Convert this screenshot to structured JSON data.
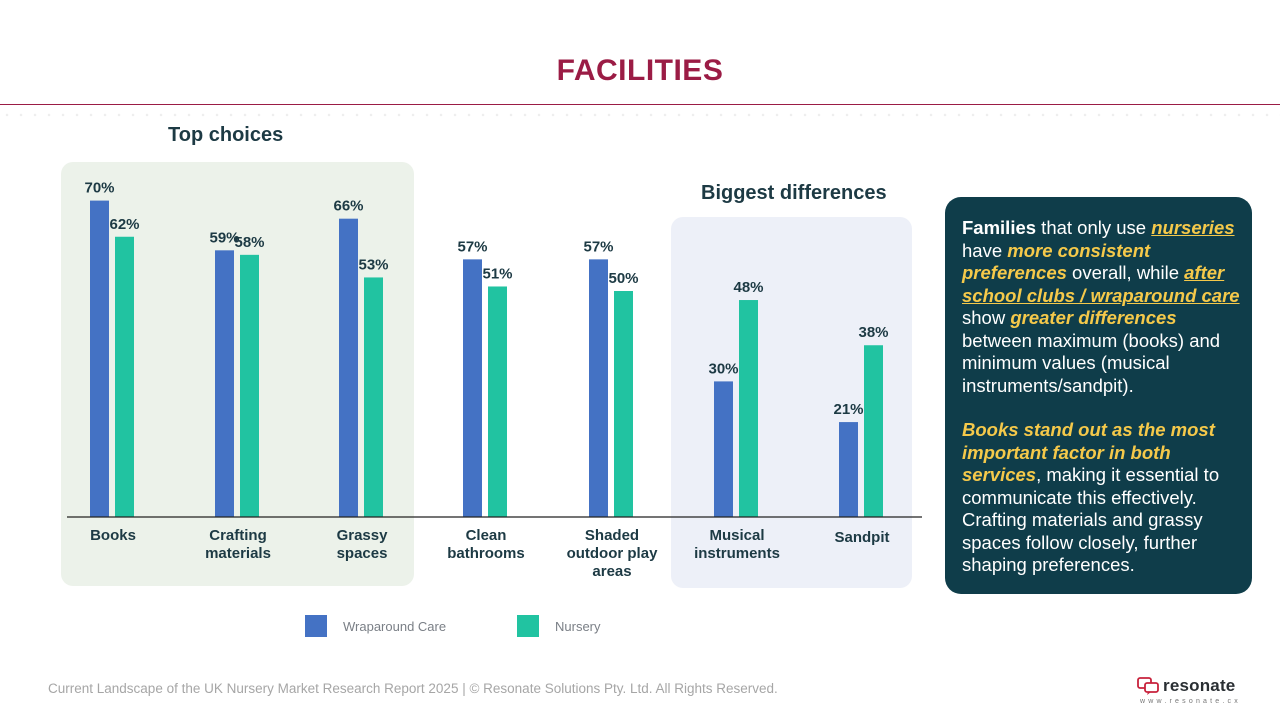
{
  "page": {
    "title": "FACILITIES",
    "top_choices_label": "Top choices",
    "biggest_differences_label": "Biggest differences"
  },
  "chart_data": {
    "type": "bar",
    "categories": [
      "Books",
      "Crafting\nmaterials",
      "Grassy\nspaces",
      "Clean\nbathrooms",
      "Shaded\noutdoor play\nareas",
      "Musical\ninstruments",
      "Sandpit"
    ],
    "series": [
      {
        "name": "Wraparound Care",
        "color": "#4472c4",
        "values": [
          70,
          59,
          66,
          57,
          57,
          30,
          21
        ],
        "labels": [
          "70%",
          "59%",
          "66%",
          "57%",
          "57%",
          "30%",
          "21%"
        ]
      },
      {
        "name": "Nursery",
        "color": "#21c3a1",
        "values": [
          62,
          58,
          53,
          51,
          50,
          48,
          38
        ],
        "labels": [
          "62%",
          "58%",
          "53%",
          "51%",
          "50%",
          "48%",
          "38%"
        ]
      }
    ],
    "ylim": [
      0,
      100
    ],
    "grid": false,
    "legend_position": "bottom"
  },
  "info_box": {
    "p1": {
      "a": "Families",
      "b": " that only use ",
      "c": "nurseries",
      "d": " have ",
      "e": "more consistent preferences",
      "f": " overall, while ",
      "g": "after school clubs / wraparound care",
      "h": " show ",
      "i": "greater differences",
      "j": " between maximum (books) and minimum values (musical instruments/sandpit)."
    },
    "p2": {
      "a": "Books stand out as the most important factor in both services",
      "b": ", making it essential to communicate this effectively. Crafting materials and grassy spaces follow closely, further shaping preferences."
    }
  },
  "footer": {
    "text": "Current Landscape of the UK Nursery Market Research Report 2025 | © Resonate Solutions Pty. Ltd. All Rights Reserved.",
    "logo_text": "resonate",
    "logo_url": "www.resonate.cx"
  }
}
